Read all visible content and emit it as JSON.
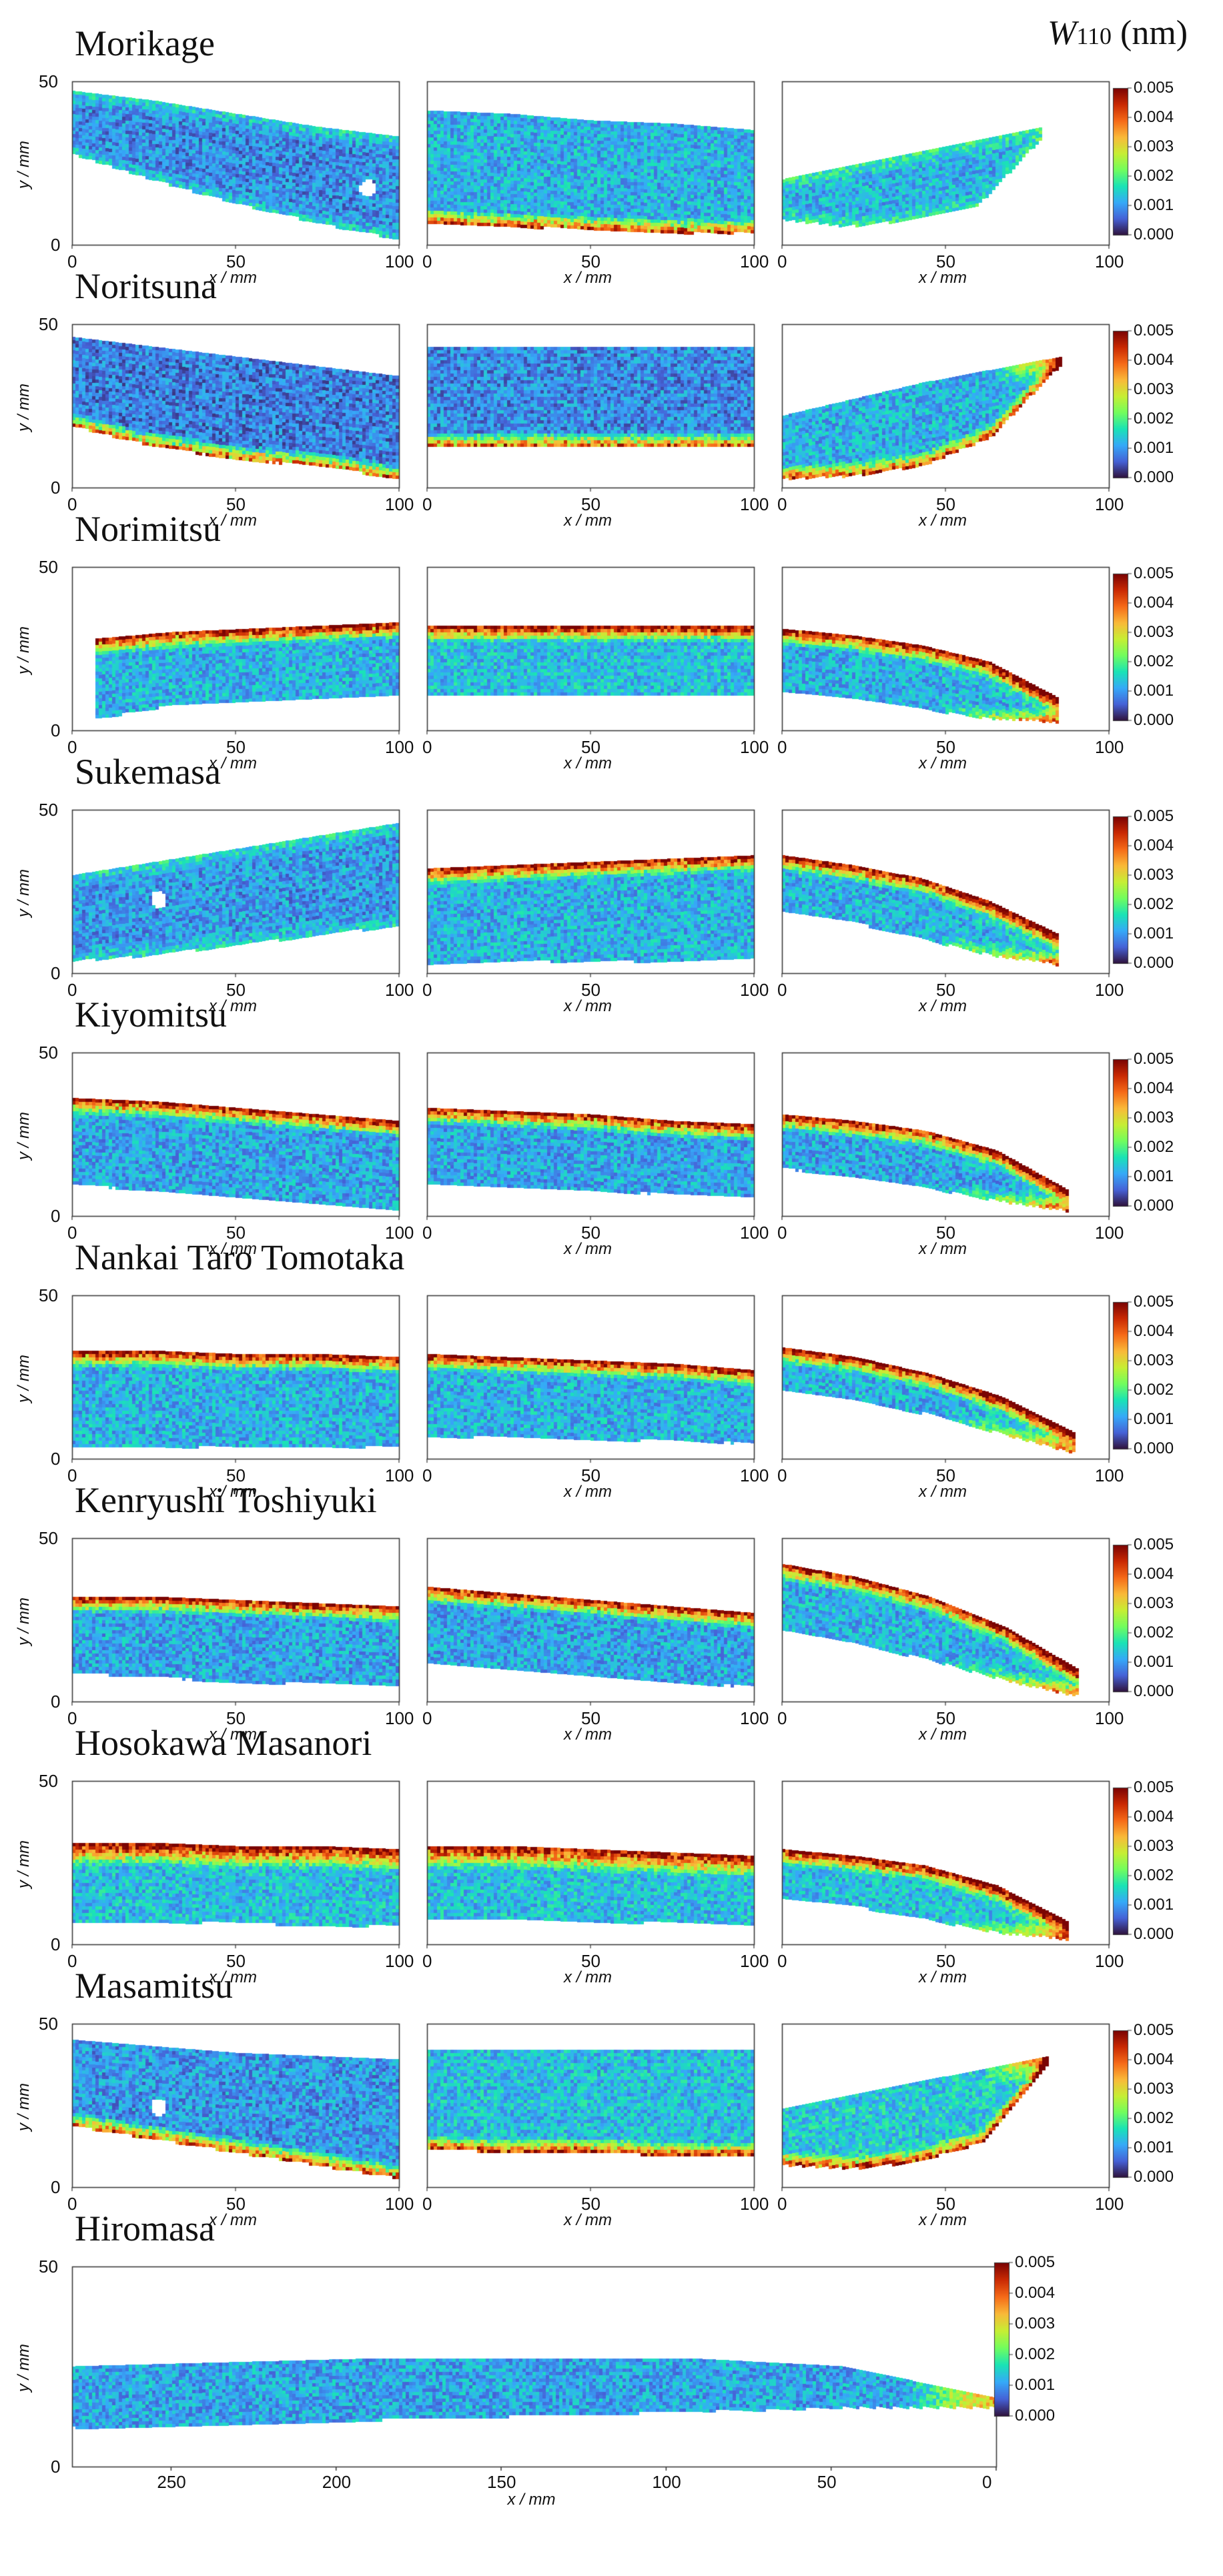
{
  "figure": {
    "colorbar_quantity": "W",
    "colorbar_subscript": "110",
    "colorbar_unit": "(nm)"
  },
  "chart_data": {
    "type": "heatmap",
    "description_note": "Spatial maps of diffraction peak width W110 over sword blades; three map sections per sword plus one full-length map.",
    "colormap": [
      "#30123b",
      "#4662d7",
      "#36aaf9",
      "#1ae4b6",
      "#72fe5e",
      "#c7ef34",
      "#faba39",
      "#f66b19",
      "#ca2a04",
      "#7a0403"
    ],
    "color_range": [
      0.0,
      0.005
    ],
    "colorbar_ticks": [
      "0.005",
      "0.004",
      "0.003",
      "0.002",
      "0.001",
      "0.000"
    ],
    "xlabel": "x / mm",
    "ylabel": "y / mm",
    "ylim": [
      0,
      50
    ],
    "y_ticks": [
      "50",
      "0"
    ],
    "x_ticks": [
      "0",
      "50",
      "100"
    ],
    "swords": [
      {
        "name": "Morikage",
        "panels": [
          {
            "top": [
              47,
              44,
              40,
              36,
              33
            ],
            "bottom": [
              28,
              20,
              13,
              7,
              2
            ],
            "edge_hot": "none",
            "hole": [
              90,
              18
            ],
            "level": 0.0009
          },
          {
            "top": [
              41,
              40,
              38,
              37,
              35
            ],
            "bottom": [
              7,
              6,
              5,
              4,
              4
            ],
            "edge_hot": "bottom",
            "level": 0.0012
          },
          {
            "top": [
              20,
              24,
              28,
              32,
              36
            ],
            "bottom": [
              8,
              6,
              8,
              12,
              33
            ],
            "tip_x": 79,
            "edge_hot": "none",
            "level": 0.0012
          }
        ]
      },
      {
        "name": "Noritsuna",
        "panels": [
          {
            "top": [
              46,
              43,
              40,
              37,
              34
            ],
            "bottom": [
              19,
              13,
              9,
              7,
              3
            ],
            "edge_hot": "bottom",
            "level": 0.0008
          },
          {
            "top": [
              43,
              43,
              43,
              43,
              43
            ],
            "bottom": [
              13,
              13,
              13,
              13,
              13
            ],
            "edge_hot": "bottom",
            "level": 0.0009
          },
          {
            "top": [
              22,
              27,
              32,
              36,
              40
            ],
            "bottom": [
              3,
              4,
              7,
              16,
              38
            ],
            "tip_x": 85,
            "edge_hot": "bottom",
            "level": 0.0012
          }
        ]
      },
      {
        "name": "Norimitsu",
        "panels": [
          {
            "top": [
              28,
              30,
              31,
              32,
              33
            ],
            "bottom": [
              4,
              8,
              9,
              10,
              11
            ],
            "edge_hot": "top",
            "level": 0.0012,
            "start_x": 7
          },
          {
            "top": [
              32,
              32,
              32,
              32,
              32
            ],
            "bottom": [
              11,
              11,
              11,
              11,
              11
            ],
            "edge_hot": "top",
            "level": 0.0013
          },
          {
            "top": [
              31,
              29,
              26,
              21,
              10
            ],
            "bottom": [
              12,
              10,
              7,
              4,
              3
            ],
            "tip_x": 84,
            "edge_hot": "curve",
            "level": 0.0012
          }
        ]
      },
      {
        "name": "Sukemasa",
        "panels": [
          {
            "top": [
              30,
              34,
              38,
              42,
              46
            ],
            "bottom": [
              4,
              6,
              9,
              12,
              15
            ],
            "edge_hot": "none",
            "hole": [
              26,
              23
            ],
            "level": 0.001
          },
          {
            "top": [
              32,
              33,
              34,
              35,
              36
            ],
            "bottom": [
              3,
              4,
              4,
              4,
              5
            ],
            "edge_hot": "top",
            "level": 0.0012
          },
          {
            "top": [
              36,
              33,
              29,
              22,
              12
            ],
            "bottom": [
              19,
              16,
              11,
              6,
              3
            ],
            "tip_x": 84,
            "edge_hot": "curve",
            "level": 0.0012
          }
        ]
      },
      {
        "name": "Kiyomitsu",
        "panels": [
          {
            "top": [
              36,
              35,
              33,
              31,
              29
            ],
            "bottom": [
              10,
              8,
              6,
              4,
              2
            ],
            "edge_hot": "top",
            "level": 0.0011
          },
          {
            "top": [
              33,
              32,
              31,
              29,
              28
            ],
            "bottom": [
              10,
              9,
              8,
              7,
              6
            ],
            "edge_hot": "top",
            "level": 0.0011
          },
          {
            "top": [
              31,
              29,
              26,
              20,
              8
            ],
            "bottom": [
              15,
              12,
              9,
              5,
              2
            ],
            "tip_x": 87,
            "edge_hot": "curve",
            "level": 0.0011
          }
        ]
      },
      {
        "name": "Nankai Taro Tomotaka",
        "panels": [
          {
            "top": [
              33,
              33,
              32,
              32,
              31
            ],
            "bottom": [
              4,
              4,
              4,
              4,
              4
            ],
            "edge_hot": "top",
            "level": 0.0012
          },
          {
            "top": [
              32,
              31,
              30,
              29,
              27
            ],
            "bottom": [
              7,
              7,
              6,
              6,
              5
            ],
            "edge_hot": "top",
            "level": 0.0012
          },
          {
            "top": [
              34,
              31,
              26,
              19,
              8
            ],
            "bottom": [
              21,
              18,
              14,
              8,
              2
            ],
            "tip_x": 89,
            "edge_hot": "curve",
            "level": 0.0012
          }
        ]
      },
      {
        "name": "Kenryushi Toshiyuki",
        "panels": [
          {
            "top": [
              32,
              32,
              31,
              30,
              29
            ],
            "bottom": [
              9,
              8,
              6,
              6,
              5
            ],
            "edge_hot": "top",
            "level": 0.0011
          },
          {
            "top": [
              35,
              33,
              31,
              29,
              27
            ],
            "bottom": [
              12,
              10,
              8,
              6,
              5
            ],
            "edge_hot": "top",
            "level": 0.0011
          },
          {
            "top": [
              42,
              38,
              32,
              23,
              10
            ],
            "bottom": [
              22,
              18,
              13,
              7,
              2
            ],
            "tip_x": 90,
            "edge_hot": "curve",
            "level": 0.0012
          }
        ]
      },
      {
        "name": "Hosokawa Masanori",
        "panels": [
          {
            "top": [
              31,
              31,
              30,
              30,
              29
            ],
            "bottom": [
              7,
              7,
              7,
              6,
              6
            ],
            "edge_hot": "top_wide",
            "level": 0.0013
          },
          {
            "top": [
              30,
              30,
              29,
              28,
              27
            ],
            "bottom": [
              8,
              8,
              7,
              7,
              6
            ],
            "edge_hot": "top_wide",
            "level": 0.0013
          },
          {
            "top": [
              29,
              27,
              24,
              18,
              7
            ],
            "bottom": [
              14,
              12,
              8,
              4,
              2
            ],
            "tip_x": 87,
            "edge_hot": "curve",
            "level": 0.0013
          }
        ]
      },
      {
        "name": "Masamitsu",
        "panels": [
          {
            "top": [
              45,
              43,
              41,
              40,
              39
            ],
            "bottom": [
              19,
              15,
              11,
              7,
              3
            ],
            "edge_hot": "bottom",
            "hole": [
              26,
              25
            ],
            "level": 0.001
          },
          {
            "top": [
              42,
              42,
              42,
              42,
              42
            ],
            "bottom": [
              12,
              11,
              11,
              10,
              10
            ],
            "edge_hot": "bottom",
            "level": 0.0013
          },
          {
            "top": [
              24,
              28,
              32,
              36,
              40
            ],
            "bottom": [
              7,
              6,
              8,
              14,
              38
            ],
            "tip_x": 81,
            "edge_hot": "bottom",
            "level": 0.0014
          }
        ]
      },
      {
        "name": "Hiromasa",
        "full_length": true,
        "x_range": [
          280,
          0
        ],
        "x_ticks": [
          "250",
          "200",
          "150",
          "100",
          "50",
          "0"
        ],
        "panels": [
          {
            "top": [
              25,
              26,
              27,
              27,
              27,
              25,
              17
            ],
            "bottom": [
              10,
              11,
              12,
              13,
              14,
              15,
              15
            ],
            "edge_hot": "tip",
            "level": 0.0011
          }
        ]
      }
    ]
  }
}
